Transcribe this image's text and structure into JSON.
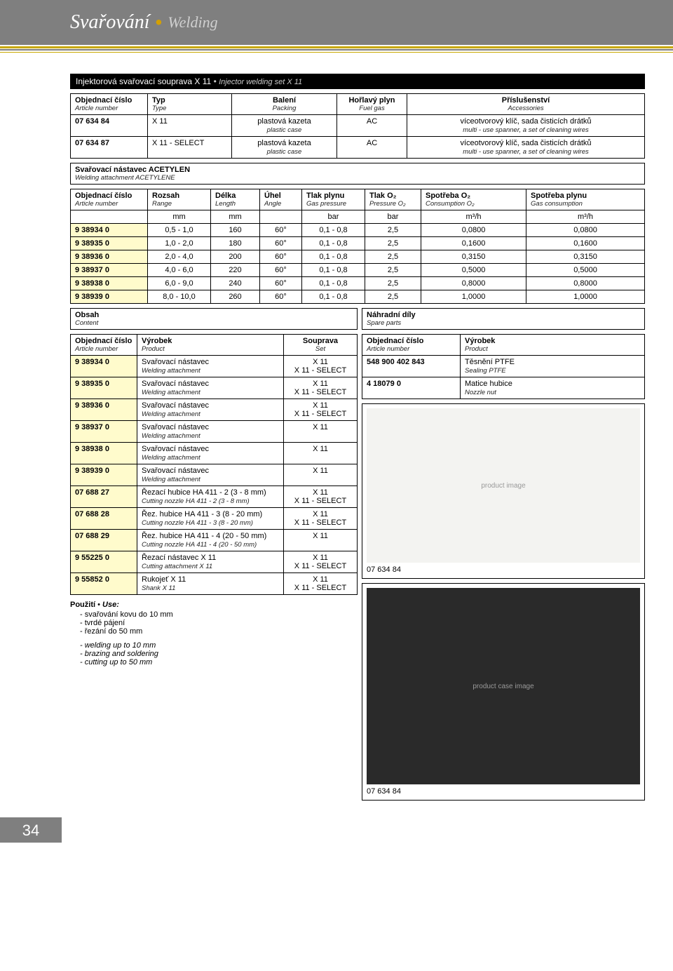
{
  "header": {
    "title_cz": "Svařování",
    "title_en": "Welding"
  },
  "section_title_cz": "Injektorová svařovací souprava X 11",
  "section_title_en": "Injector welding set X 11",
  "t1": {
    "headers": {
      "c1_cz": "Objednací číslo",
      "c1_en": "Article number",
      "c2_cz": "Typ",
      "c2_en": "Type",
      "c3_cz": "Balení",
      "c3_en": "Packing",
      "c4_cz": "Hořlavý plyn",
      "c4_en": "Fuel gas",
      "c5_cz": "Příslušenství",
      "c5_en": "Accessories"
    },
    "rows": [
      {
        "art": "07 634 84",
        "typ": "X 11",
        "bal_cz": "plastová kazeta",
        "bal_en": "plastic case",
        "gas": "AC",
        "acc_cz": "víceotvorový klíč, sada čisticích drátků",
        "acc_en": "multi - use spanner, a set of cleaning wires"
      },
      {
        "art": "07 634 87",
        "typ": "X 11 - SELECT",
        "bal_cz": "plastová kazeta",
        "bal_en": "plastic case",
        "gas": "AC",
        "acc_cz": "víceotvorový klíč, sada čisticích drátků",
        "acc_en": "multi - use spanner, a set of cleaning wires"
      }
    ]
  },
  "attach_header_cz": "Svařovací nástavec ACETYLEN",
  "attach_header_en": "Welding attachment ACETYLENE",
  "t2": {
    "headers": {
      "c1_cz": "Objednací číslo",
      "c1_en": "Article number",
      "c2_cz": "Rozsah",
      "c2_en": "Range",
      "c3_cz": "Délka",
      "c3_en": "Length",
      "c4_cz": "Úhel",
      "c4_en": "Angle",
      "c5_cz": "Tlak plynu",
      "c5_en": "Gas pressure",
      "c6_cz": "Tlak O₂",
      "c6_en": "Pressure O₂",
      "c7_cz": "Spotřeba O₂",
      "c7_en": "Consumption O₂",
      "c8_cz": "Spotřeba plynu",
      "c8_en": "Gas consumption"
    },
    "units": {
      "u2": "mm",
      "u3": "mm",
      "u5": "bar",
      "u6": "bar",
      "u7": "m³/h",
      "u8": "m³/h"
    },
    "rows": [
      {
        "a": "9 38934 0",
        "r": "0,5 - 1,0",
        "l": "160",
        "ang": "60°",
        "gp": "0,1 - 0,8",
        "po": "2,5",
        "co": "0,0800",
        "cg": "0,0800"
      },
      {
        "a": "9 38935 0",
        "r": "1,0 - 2,0",
        "l": "180",
        "ang": "60°",
        "gp": "0,1 - 0,8",
        "po": "2,5",
        "co": "0,1600",
        "cg": "0,1600"
      },
      {
        "a": "9 38936 0",
        "r": "2,0 - 4,0",
        "l": "200",
        "ang": "60°",
        "gp": "0,1 - 0,8",
        "po": "2,5",
        "co": "0,3150",
        "cg": "0,3150"
      },
      {
        "a": "9 38937 0",
        "r": "4,0 - 6,0",
        "l": "220",
        "ang": "60°",
        "gp": "0,1 - 0,8",
        "po": "2,5",
        "co": "0,5000",
        "cg": "0,5000"
      },
      {
        "a": "9 38938 0",
        "r": "6,0 - 9,0",
        "l": "240",
        "ang": "60°",
        "gp": "0,1 - 0,8",
        "po": "2,5",
        "co": "0,8000",
        "cg": "0,8000"
      },
      {
        "a": "9 38939 0",
        "r": "8,0 - 10,0",
        "l": "260",
        "ang": "60°",
        "gp": "0,1 - 0,8",
        "po": "2,5",
        "co": "1,0000",
        "cg": "1,0000"
      }
    ]
  },
  "obsah_cz": "Obsah",
  "obsah_en": "Content",
  "nahradni_cz": "Náhradní díly",
  "nahradni_en": "Spare parts",
  "t3": {
    "headers": {
      "c1_cz": "Objednací číslo",
      "c1_en": "Article number",
      "c2_cz": "Výrobek",
      "c2_en": "Product",
      "c3_cz": "Souprava",
      "c3_en": "Set"
    },
    "rows": [
      {
        "a": "9 38934 0",
        "p_cz": "Svařovací nástavec",
        "p_en": "Welding attachment",
        "s1": "X 11",
        "s2": "X 11 - SELECT"
      },
      {
        "a": "9 38935 0",
        "p_cz": "Svařovací nástavec",
        "p_en": "Welding attachment",
        "s1": "X 11",
        "s2": "X 11 - SELECT"
      },
      {
        "a": "9 38936 0",
        "p_cz": "Svařovací nástavec",
        "p_en": "Welding attachment",
        "s1": "X 11",
        "s2": "X 11 - SELECT"
      },
      {
        "a": "9 38937 0",
        "p_cz": "Svařovací nástavec",
        "p_en": "Welding attachment",
        "s1": "X 11",
        "s2": ""
      },
      {
        "a": "9 38938 0",
        "p_cz": "Svařovací nástavec",
        "p_en": "Welding attachment",
        "s1": "X 11",
        "s2": ""
      },
      {
        "a": "9 38939 0",
        "p_cz": "Svařovací nástavec",
        "p_en": "Welding attachment",
        "s1": "X 11",
        "s2": ""
      },
      {
        "a": "07 688 27",
        "p_cz": "Řezací hubice HA 411 - 2 (3 - 8 mm)",
        "p_en": "Cutting nozzle HA 411 - 2 (3 - 8 mm)",
        "s1": "X 11",
        "s2": "X 11 - SELECT"
      },
      {
        "a": "07 688 28",
        "p_cz": "Řez. hubice HA 411 - 3 (8 - 20 mm)",
        "p_en": "Cutting nozzle HA 411 - 3 (8 - 20 mm)",
        "s1": "X 11",
        "s2": "X 11 - SELECT"
      },
      {
        "a": "07 688 29",
        "p_cz": "Řez. hubice HA 411 - 4 (20 - 50 mm)",
        "p_en": "Cutting nozzle HA 411 - 4 (20 - 50 mm)",
        "s1": "X 11",
        "s2": ""
      },
      {
        "a": "9 55225 0",
        "p_cz": "Řezací nástavec X 11",
        "p_en": "Cutting attachment X 11",
        "s1": "X 11",
        "s2": "X 11 - SELECT"
      },
      {
        "a": "9 55852 0",
        "p_cz": "Rukojeť X 11",
        "p_en": "Shank X 11",
        "s1": "X 11",
        "s2": "X 11 - SELECT"
      }
    ]
  },
  "t4": {
    "headers": {
      "c1_cz": "Objednací číslo",
      "c1_en": "Article number",
      "c2_cz": "Výrobek",
      "c2_en": "Product"
    },
    "rows": [
      {
        "a": "548 900 402 843",
        "p_cz": "Těsnění PTFE",
        "p_en": "Sealing PTFE"
      },
      {
        "a": "4 18079 0",
        "p_cz": "Matice hubice",
        "p_en": "Nozzle nut"
      }
    ]
  },
  "usage": {
    "title_cz": "Použití",
    "title_en": "Use:",
    "cz": [
      "svařování kovu do 10 mm",
      "tvrdé pájení",
      "řezání do 50 mm"
    ],
    "en": [
      "welding up to 10 mm",
      "brazing and soldering",
      "cutting up to 50 mm"
    ]
  },
  "img1_caption": "07 634 84",
  "img2_caption": "07 634 84",
  "page_number": "34",
  "colors": {
    "band": "#7f7f7f",
    "accent": "#c8a800",
    "yellow_cell": "#fffbcc"
  }
}
